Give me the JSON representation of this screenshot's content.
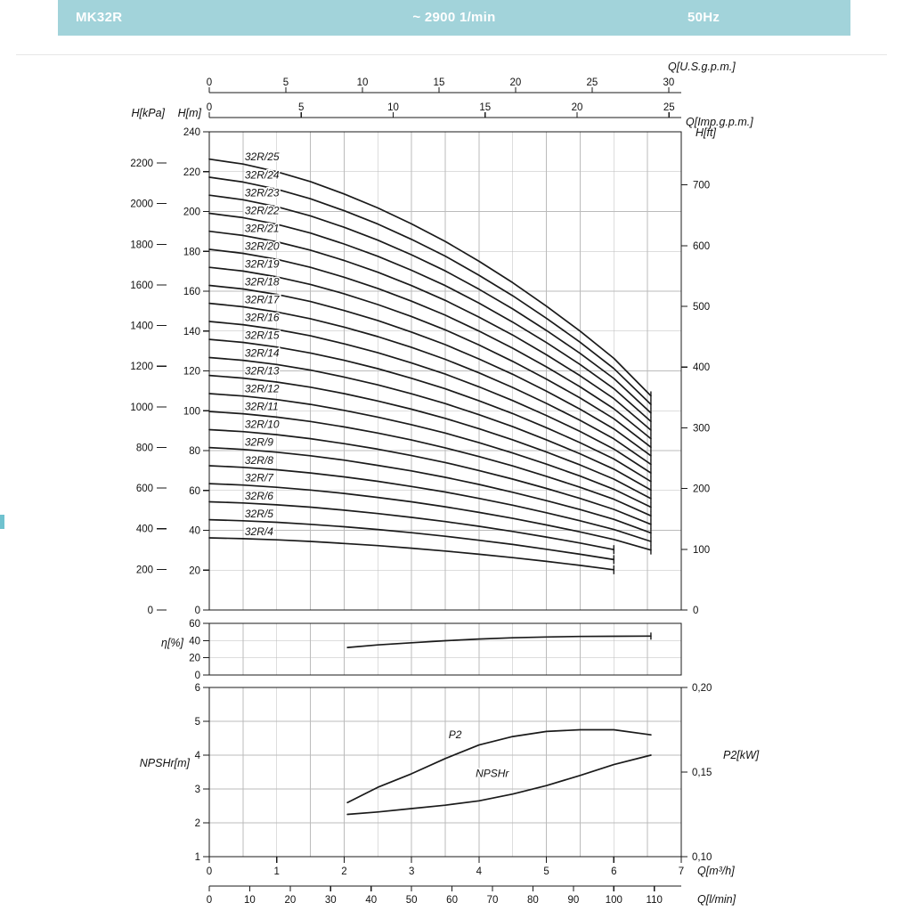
{
  "header": {
    "model": "MK32R",
    "speed": "~ 2900 1/min",
    "frequency": "50Hz"
  },
  "theme": {
    "header_bar": "#a2d3da",
    "ink": "#1a1a1a",
    "grid": "#bbbbbb",
    "accent_dash": "#6fc2cf"
  },
  "chart_data": [
    {
      "id": "head_curves",
      "type": "line",
      "title": "MK32R head curves, ~2900 1/min, 50Hz",
      "legend_position": "on-curve-left",
      "grid": true,
      "x_axes": {
        "m3h": {
          "label": "Q[m³/h]",
          "min": 0,
          "max": 7,
          "ticks": [
            0,
            1,
            2,
            3,
            4,
            5,
            6,
            7
          ],
          "grid_step": 0.5
        },
        "lmin": {
          "label": "Q[l/min]",
          "ticks": [
            0,
            10,
            20,
            30,
            40,
            50,
            60,
            70,
            80,
            90,
            100,
            110
          ],
          "per_m3h": 16.6667
        },
        "usgpm": {
          "label": "Q[U.S.g.p.m.]",
          "ticks": [
            0,
            5,
            10,
            15,
            20,
            25,
            30
          ],
          "per_m3h": 4.4029
        },
        "impgpm": {
          "label": "Q[Imp.g.p.m.]",
          "ticks": [
            0,
            5,
            10,
            15,
            20,
            25
          ],
          "per_m3h": 3.6662
        }
      },
      "y_axes": {
        "m": {
          "label": "H[m]",
          "min": 0,
          "max": 240,
          "tick_step": 20
        },
        "kpa": {
          "label": "H[kPa]",
          "ticks": [
            0,
            200,
            400,
            600,
            800,
            1000,
            1200,
            1400,
            1600,
            1800,
            2000,
            2200
          ],
          "per_m": 9.80665
        },
        "ft": {
          "label": "H[ft]",
          "ticks": [
            0,
            100,
            200,
            300,
            400,
            500,
            600,
            700
          ],
          "per_m": 3.28084
        }
      },
      "q": [
        0,
        0.5,
        1,
        1.5,
        2,
        2.5,
        3,
        3.5,
        4,
        4.5,
        5,
        5.5,
        6,
        6.55
      ],
      "series": [
        {
          "name": "32R/25",
          "h": [
            226.3,
            223.8,
            220.0,
            215.0,
            208.8,
            201.8,
            193.8,
            185.0,
            175.0,
            164.3,
            152.5,
            140.0,
            126.3,
            107.5
          ]
        },
        {
          "name": "32R/24",
          "h": [
            217.2,
            214.8,
            211.2,
            206.4,
            200.4,
            193.7,
            186.0,
            177.6,
            168.0,
            157.7,
            146.4,
            134.4,
            121.2,
            103.2
          ]
        },
        {
          "name": "32R/23",
          "h": [
            208.2,
            205.9,
            202.4,
            197.8,
            192.1,
            185.6,
            178.3,
            170.2,
            161.0,
            151.1,
            140.3,
            128.8,
            116.2,
            98.9
          ]
        },
        {
          "name": "32R/22",
          "h": [
            199.1,
            196.9,
            193.6,
            189.2,
            183.7,
            177.5,
            170.5,
            162.8,
            154.0,
            144.5,
            134.2,
            123.2,
            111.1,
            94.6
          ]
        },
        {
          "name": "32R/21",
          "h": [
            190.1,
            188.0,
            184.8,
            180.6,
            175.4,
            169.5,
            162.8,
            155.4,
            147.0,
            138.0,
            128.1,
            117.6,
            106.1,
            90.3
          ]
        },
        {
          "name": "32R/20",
          "h": [
            181.0,
            179.0,
            176.0,
            172.0,
            167.0,
            161.4,
            155.0,
            148.0,
            140.0,
            131.4,
            122.0,
            112.0,
            101.0,
            86.0
          ]
        },
        {
          "name": "32R/19",
          "h": [
            172.0,
            170.1,
            167.2,
            163.4,
            158.7,
            153.3,
            147.3,
            140.6,
            133.0,
            124.8,
            115.9,
            106.4,
            96.0,
            81.7
          ]
        },
        {
          "name": "32R/18",
          "h": [
            162.9,
            161.1,
            158.4,
            154.8,
            150.3,
            145.3,
            139.5,
            133.2,
            126.0,
            118.3,
            109.8,
            100.8,
            90.9,
            77.4
          ]
        },
        {
          "name": "32R/17",
          "h": [
            153.9,
            152.2,
            149.6,
            146.2,
            142.0,
            137.2,
            131.8,
            125.8,
            119.0,
            111.7,
            103.7,
            95.2,
            85.9,
            73.1
          ]
        },
        {
          "name": "32R/16",
          "h": [
            144.8,
            143.2,
            140.8,
            137.6,
            133.6,
            129.1,
            124.0,
            118.4,
            112.0,
            105.1,
            97.6,
            89.6,
            80.8,
            68.8
          ]
        },
        {
          "name": "32R/15",
          "h": [
            135.8,
            134.3,
            132.0,
            129.0,
            125.3,
            121.1,
            116.3,
            111.0,
            105.0,
            98.6,
            91.5,
            84.0,
            75.8,
            64.5
          ]
        },
        {
          "name": "32R/14",
          "h": [
            126.7,
            125.3,
            123.2,
            120.4,
            116.9,
            113.0,
            108.5,
            103.6,
            98.0,
            92.0,
            85.4,
            78.4,
            70.7,
            60.2
          ]
        },
        {
          "name": "32R/13",
          "h": [
            117.7,
            116.4,
            114.4,
            111.8,
            108.6,
            104.9,
            100.8,
            96.2,
            91.0,
            85.4,
            79.3,
            72.8,
            65.7,
            55.9
          ]
        },
        {
          "name": "32R/12",
          "h": [
            108.6,
            107.4,
            105.6,
            103.2,
            100.2,
            96.8,
            93.0,
            88.8,
            84.0,
            78.8,
            73.2,
            67.2,
            60.6,
            51.6
          ]
        },
        {
          "name": "32R/11",
          "h": [
            99.6,
            98.5,
            96.8,
            94.6,
            91.9,
            88.8,
            85.3,
            81.4,
            77.0,
            72.3,
            67.1,
            61.6,
            55.6,
            47.3
          ]
        },
        {
          "name": "32R/10",
          "h": [
            90.5,
            89.5,
            88.0,
            86.0,
            83.5,
            80.7,
            77.5,
            74.0,
            70.0,
            65.7,
            61.0,
            56.0,
            50.5,
            43.0
          ]
        },
        {
          "name": "32R/9",
          "h": [
            81.5,
            80.6,
            79.2,
            77.4,
            75.2,
            72.6,
            69.8,
            66.6,
            63.0,
            59.1,
            54.9,
            50.4,
            45.5,
            38.7
          ]
        },
        {
          "name": "32R/8",
          "h": [
            72.4,
            71.6,
            70.4,
            68.8,
            66.8,
            64.6,
            62.0,
            59.2,
            56.0,
            52.6,
            48.8,
            44.8,
            40.4,
            34.4
          ]
        },
        {
          "name": "32R/7",
          "h": [
            63.4,
            62.7,
            61.6,
            60.2,
            58.5,
            56.5,
            54.3,
            51.8,
            49.0,
            46.0,
            42.7,
            39.2,
            35.4,
            30.1
          ]
        },
        {
          "name": "32R/6",
          "h": [
            54.3,
            53.7,
            52.8,
            51.6,
            50.1,
            48.4,
            46.5,
            44.4,
            42.0,
            39.4,
            36.6,
            33.6,
            30.3
          ]
        },
        {
          "name": "32R/5",
          "h": [
            45.3,
            44.8,
            44.0,
            43.0,
            41.8,
            40.4,
            38.8,
            37.0,
            35.0,
            32.9,
            30.5,
            28.0,
            25.3
          ]
        },
        {
          "name": "32R/4",
          "h": [
            36.2,
            35.8,
            35.2,
            34.4,
            33.4,
            32.3,
            31.0,
            29.6,
            28.0,
            26.3,
            24.4,
            22.4,
            20.2
          ]
        }
      ]
    },
    {
      "id": "efficiency",
      "type": "line",
      "title": "Efficiency",
      "y_axis": {
        "label": "η[%]",
        "min": 0,
        "max": 60,
        "ticks": [
          0,
          20,
          40,
          60
        ],
        "grid": [
          20,
          40
        ]
      },
      "q": [
        2.05,
        2.5,
        3,
        3.5,
        4,
        4.5,
        5,
        5.5,
        6,
        6.55
      ],
      "series": [
        {
          "name": "η",
          "values": [
            32,
            35,
            37.5,
            39.8,
            41.8,
            43.2,
            44.2,
            44.8,
            45,
            45.2
          ]
        }
      ]
    },
    {
      "id": "npsh_p2",
      "type": "line",
      "title": "NPSHr and P2",
      "y_axis_left": {
        "label": "NPSHr[m]",
        "min": 1,
        "max": 6,
        "ticks": [
          1,
          2,
          3,
          4,
          5,
          6
        ],
        "grid": [
          2,
          3,
          4,
          5
        ]
      },
      "y_axis_right": {
        "label": "P2[kW]",
        "min": 0.1,
        "max": 0.2,
        "ticks": [
          {
            "label": "0,20",
            "value": 0.2
          },
          {
            "label": "0,15",
            "value": 0.15
          },
          {
            "label": "0,10",
            "value": 0.1
          }
        ]
      },
      "q": [
        2.05,
        2.5,
        3,
        3.5,
        4,
        4.5,
        5,
        5.5,
        6,
        6.55
      ],
      "series": [
        {
          "name": "P2",
          "axis": "right",
          "values": [
            0.132,
            0.141,
            0.149,
            0.158,
            0.166,
            0.171,
            0.174,
            0.175,
            0.175,
            0.172
          ],
          "label_anchor": {
            "q": 3.55,
            "v": 4.5
          }
        },
        {
          "name": "NPSHr",
          "axis": "left",
          "values": [
            2.25,
            2.32,
            2.42,
            2.52,
            2.65,
            2.85,
            3.1,
            3.4,
            3.72,
            4.0
          ],
          "label_anchor": {
            "q": 3.95,
            "v": 3.35
          }
        }
      ]
    }
  ]
}
